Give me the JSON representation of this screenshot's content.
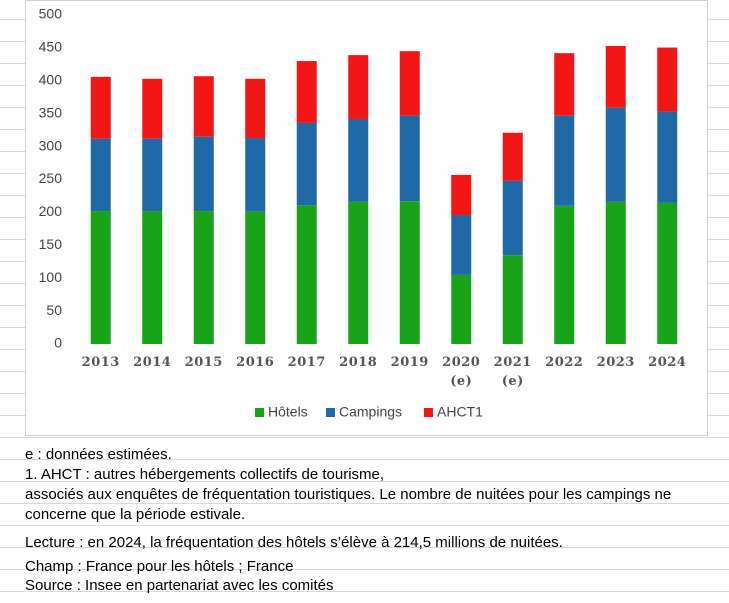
{
  "chart_data": {
    "type": "bar",
    "stacked": true,
    "categories": [
      "2013",
      "2014",
      "2015",
      "2016",
      "2017",
      "2018",
      "2019",
      "2020\n(e)",
      "2021\n(e)",
      "2022",
      "2023",
      "2024"
    ],
    "series": [
      {
        "name": "Hôtels",
        "color": "#19a319",
        "values": [
          202,
          202,
          202,
          201,
          211,
          216,
          217,
          105,
          135,
          210,
          216,
          214.5
        ]
      },
      {
        "name": "Campings",
        "color": "#1f69a6",
        "values": [
          110,
          110,
          113,
          112,
          125,
          126,
          130,
          91,
          113,
          137,
          143,
          139
        ]
      },
      {
        "name": "AHCT1",
        "color": "#f21616",
        "values": [
          94,
          91,
          92,
          90,
          94,
          97,
          98,
          61,
          73,
          95,
          94,
          97
        ]
      }
    ],
    "ylim": [
      0,
      500
    ],
    "yticks": [
      0,
      50,
      100,
      150,
      200,
      250,
      300,
      350,
      400,
      450,
      500
    ]
  },
  "notes": [
    "e : données estimées.",
    "1. AHCT : autres hébergements collectifs de tourisme,",
    "associés aux enquêtes de fréquentation touristiques. Le nombre de nuitées pour les campings ne concerne que la période estivale.",
    "Lecture : en 2024, la fréquentation des hôtels s’élève à 214,5 millions de nuitées.",
    "Champ : France pour les hôtels ; France",
    "Source : Insee en partenariat avec les comités"
  ]
}
